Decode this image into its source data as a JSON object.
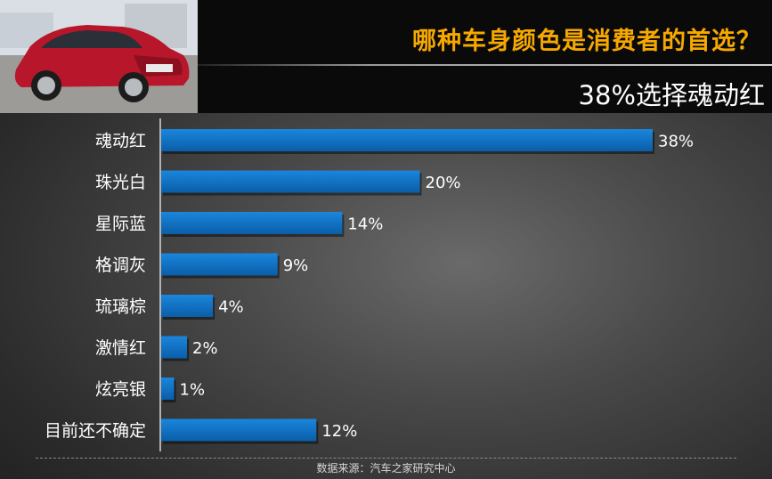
{
  "header": {
    "title": "哪种车身颜色是消费者的首选？",
    "subtitle": "38%选择魂动红",
    "photo_alt": "红色轿车"
  },
  "chart_data": {
    "type": "bar",
    "orientation": "horizontal",
    "categories": [
      "魂动红",
      "珠光白",
      "星际蓝",
      "格调灰",
      "琉璃棕",
      "激情红",
      "炫亮银",
      "目前还不确定"
    ],
    "values": [
      38,
      20,
      14,
      9,
      4,
      2,
      1,
      12
    ],
    "value_labels": [
      "38%",
      "20%",
      "14%",
      "9%",
      "4%",
      "2%",
      "1%",
      "12%"
    ],
    "unit": "%",
    "xlim": [
      0,
      38
    ],
    "bar_color": "#0d72c4",
    "grid": false,
    "legend": "none"
  },
  "footer": {
    "source": "数据来源：汽车之家研究中心"
  }
}
